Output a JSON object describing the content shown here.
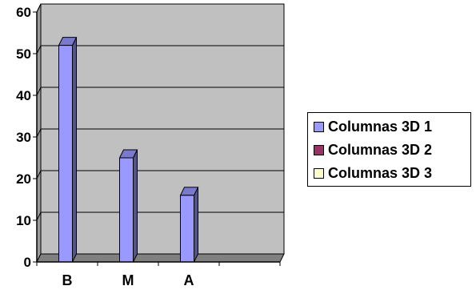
{
  "chart_data": {
    "type": "bar",
    "style": "3d-column",
    "categories": [
      "B",
      "M",
      "A",
      ""
    ],
    "series": [
      {
        "name": "Columnas 3D 1",
        "color": "#9999ff",
        "values": [
          52,
          25,
          16,
          null
        ]
      },
      {
        "name": "Columnas 3D 2",
        "color": "#993366",
        "values": [
          null,
          null,
          null,
          null
        ]
      },
      {
        "name": "Columnas 3D 3",
        "color": "#ffffcc",
        "values": [
          null,
          null,
          null,
          null
        ]
      }
    ],
    "yticks": [
      0,
      10,
      20,
      30,
      40,
      50,
      60
    ],
    "ylim": [
      0,
      60
    ],
    "title": "",
    "xlabel": "",
    "ylabel": "",
    "grid": true,
    "plot_background": "#c0c0c0",
    "legend_position": "right"
  }
}
